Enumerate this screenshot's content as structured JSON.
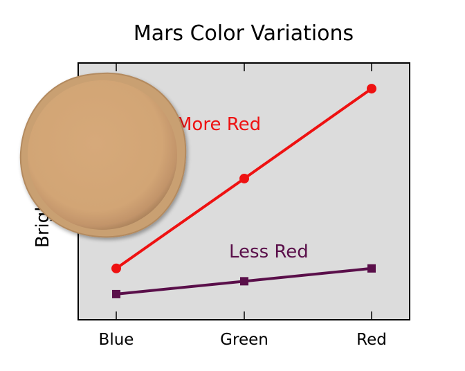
{
  "chart_data": {
    "type": "line",
    "title": "Mars Color Variations",
    "xlabel": "",
    "ylabel": "Brightness",
    "categories": [
      "Blue",
      "Green",
      "Red"
    ],
    "ylim": [
      0,
      10
    ],
    "grid": false,
    "series": [
      {
        "name": "More Red",
        "color": "#ee1111",
        "marker": "circle",
        "values": [
          2.0,
          5.5,
          9.0
        ]
      },
      {
        "name": "Less Red",
        "color": "#5a0f4a",
        "marker": "square",
        "values": [
          1.0,
          1.5,
          2.0
        ]
      }
    ]
  },
  "colors": {
    "plot_background": "#dcdcdc",
    "planet_fill": "#d8ad7e",
    "planet_rim": "#c89a68"
  },
  "decoration": {
    "icon": "mars-planet-icon"
  }
}
